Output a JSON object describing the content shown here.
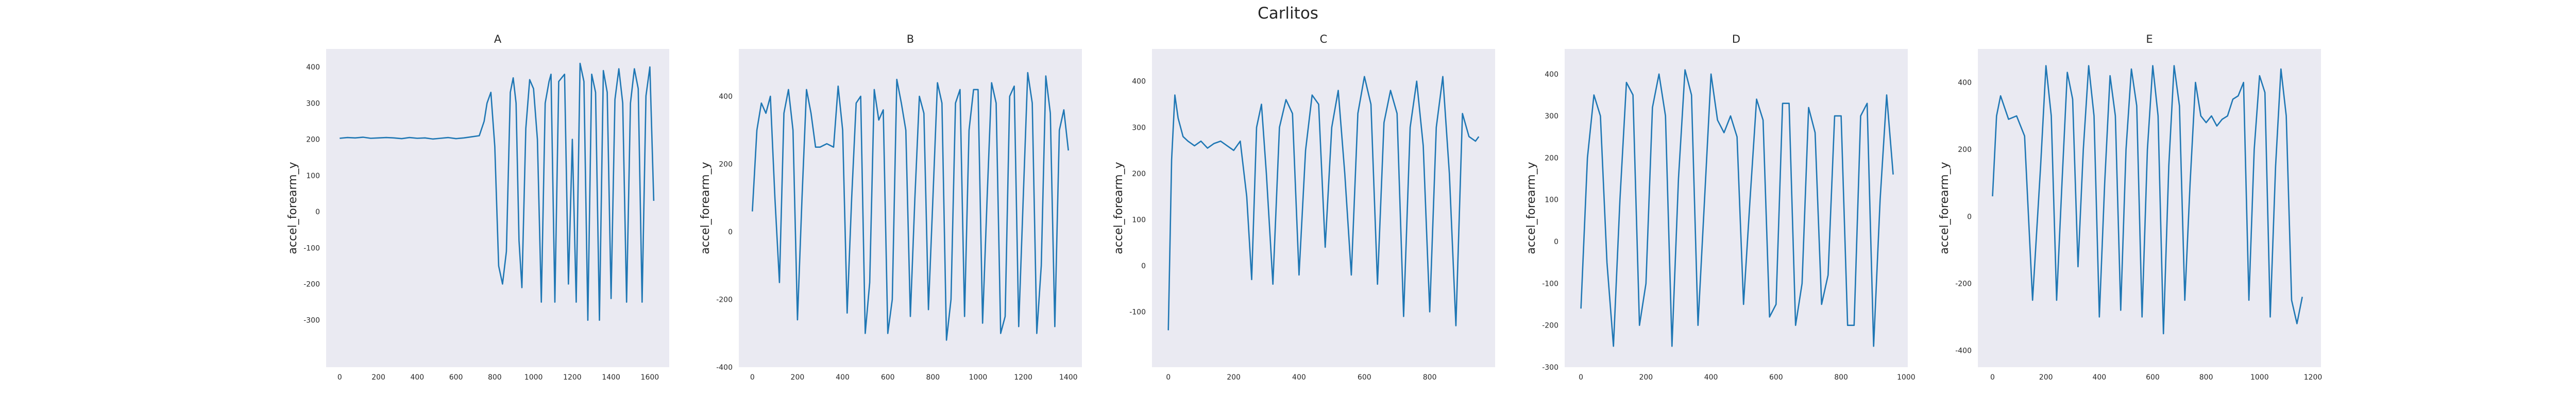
{
  "figure": {
    "suptitle": "Carlitos",
    "background": "#ffffff",
    "axes_background": "#eaeaf2",
    "line_color": "#1f77b4"
  },
  "chart_data": [
    {
      "type": "line",
      "title": "A",
      "xlabel": "",
      "ylabel": "accel_forearm_y",
      "xlim": [
        -70,
        1700
      ],
      "ylim": [
        -430,
        450
      ],
      "xticks": [
        0,
        200,
        400,
        600,
        800,
        1000,
        1200,
        1400,
        1600
      ],
      "yticks": [
        -300,
        -200,
        -100,
        0,
        100,
        200,
        300,
        400
      ],
      "grid": false,
      "series": [
        {
          "x": [
            0,
            40,
            80,
            120,
            160,
            200,
            240,
            280,
            320,
            360,
            400,
            440,
            480,
            520,
            560,
            600,
            640,
            680,
            720,
            745,
            760,
            780,
            800,
            820,
            840,
            860,
            880,
            895,
            910,
            925,
            940,
            960,
            980,
            1000,
            1020,
            1040,
            1060,
            1080,
            1090,
            1110,
            1130,
            1160,
            1180,
            1200,
            1220,
            1240,
            1260,
            1280,
            1300,
            1320,
            1340,
            1360,
            1380,
            1400,
            1420,
            1440,
            1460,
            1480,
            1500,
            1520,
            1540,
            1560,
            1580,
            1600,
            1620
          ],
          "y": [
            203,
            205,
            204,
            206,
            203,
            204,
            205,
            204,
            202,
            205,
            203,
            204,
            201,
            203,
            205,
            202,
            204,
            207,
            210,
            250,
            300,
            330,
            180,
            -150,
            -200,
            -110,
            330,
            370,
            300,
            -80,
            -210,
            230,
            365,
            340,
            200,
            -250,
            300,
            360,
            380,
            -250,
            360,
            380,
            -200,
            200,
            -250,
            410,
            360,
            -300,
            380,
            330,
            -300,
            390,
            330,
            -240,
            310,
            395,
            300,
            -250,
            300,
            395,
            340,
            -250,
            320,
            400,
            30
          ]
        }
      ]
    },
    {
      "type": "line",
      "title": "B",
      "xlabel": "",
      "ylabel": "accel_forearm_y",
      "xlim": [
        -60,
        1460
      ],
      "ylim": [
        -400,
        540
      ],
      "xticks": [
        0,
        200,
        400,
        600,
        800,
        1000,
        1200,
        1400
      ],
      "yticks": [
        -400,
        -200,
        0,
        200,
        400
      ],
      "grid": false,
      "series": [
        {
          "x": [
            0,
            20,
            40,
            60,
            80,
            100,
            120,
            140,
            160,
            180,
            200,
            220,
            240,
            260,
            280,
            300,
            330,
            360,
            380,
            400,
            420,
            440,
            460,
            480,
            500,
            520,
            540,
            560,
            580,
            600,
            620,
            640,
            660,
            680,
            700,
            720,
            740,
            760,
            780,
            800,
            820,
            840,
            860,
            880,
            900,
            920,
            940,
            960,
            980,
            1000,
            1020,
            1040,
            1060,
            1080,
            1100,
            1120,
            1140,
            1160,
            1180,
            1200,
            1220,
            1240,
            1260,
            1280,
            1300,
            1320,
            1340,
            1360,
            1380,
            1400
          ],
          "y": [
            60,
            300,
            380,
            350,
            400,
            100,
            -150,
            350,
            420,
            300,
            -260,
            100,
            420,
            350,
            250,
            250,
            260,
            250,
            430,
            300,
            -240,
            100,
            380,
            400,
            -300,
            -150,
            420,
            330,
            360,
            -300,
            -200,
            450,
            380,
            300,
            -250,
            100,
            400,
            350,
            -230,
            100,
            440,
            380,
            -320,
            -200,
            380,
            420,
            -250,
            300,
            420,
            420,
            -270,
            100,
            440,
            380,
            -300,
            -250,
            400,
            430,
            -280,
            100,
            470,
            380,
            -300,
            -100,
            460,
            350,
            -280,
            300,
            360,
            240
          ]
        }
      ]
    },
    {
      "type": "line",
      "title": "C",
      "xlabel": "",
      "ylabel": "accel_forearm_y",
      "xlim": [
        -50,
        1000
      ],
      "ylim": [
        -220,
        470
      ],
      "xticks": [
        0,
        200,
        400,
        600,
        800
      ],
      "yticks": [
        -100,
        0,
        100,
        200,
        300,
        400
      ],
      "grid": false,
      "series": [
        {
          "x": [
            0,
            10,
            20,
            30,
            45,
            60,
            80,
            100,
            120,
            140,
            160,
            180,
            200,
            220,
            240,
            255,
            270,
            285,
            300,
            320,
            340,
            360,
            380,
            400,
            420,
            440,
            460,
            480,
            500,
            520,
            540,
            560,
            580,
            600,
            620,
            640,
            660,
            680,
            700,
            720,
            740,
            760,
            780,
            800,
            820,
            840,
            860,
            880,
            900,
            920,
            940,
            950
          ],
          "y": [
            -140,
            230,
            370,
            320,
            280,
            270,
            260,
            270,
            255,
            265,
            270,
            260,
            250,
            270,
            150,
            -30,
            300,
            350,
            200,
            -40,
            300,
            360,
            330,
            -20,
            250,
            370,
            350,
            40,
            300,
            380,
            200,
            -20,
            330,
            410,
            350,
            -40,
            310,
            380,
            330,
            -110,
            300,
            400,
            260,
            -100,
            300,
            410,
            200,
            -130,
            330,
            280,
            270,
            280
          ]
        }
      ]
    },
    {
      "type": "line",
      "title": "D",
      "xlabel": "",
      "ylabel": "accel_forearm_y",
      "xlim": [
        -50,
        1005
      ],
      "ylim": [
        -300,
        460
      ],
      "xticks": [
        0,
        200,
        400,
        600,
        800,
        1000
      ],
      "yticks": [
        -300,
        -200,
        -100,
        0,
        100,
        200,
        300,
        400
      ],
      "grid": false,
      "series": [
        {
          "x": [
            0,
            20,
            40,
            60,
            80,
            100,
            120,
            140,
            160,
            180,
            200,
            220,
            240,
            260,
            280,
            300,
            320,
            340,
            360,
            380,
            400,
            420,
            440,
            460,
            480,
            500,
            520,
            540,
            560,
            580,
            600,
            620,
            640,
            660,
            680,
            700,
            720,
            740,
            760,
            780,
            800,
            820,
            840,
            860,
            880,
            900,
            920,
            940,
            960
          ],
          "y": [
            -160,
            200,
            350,
            300,
            -50,
            -250,
            100,
            380,
            350,
            -200,
            -100,
            320,
            400,
            300,
            -250,
            150,
            410,
            350,
            -200,
            100,
            400,
            290,
            260,
            300,
            250,
            -150,
            100,
            340,
            290,
            -180,
            -150,
            330,
            330,
            -200,
            -100,
            320,
            260,
            -150,
            -80,
            300,
            300,
            -200,
            -200,
            300,
            330,
            -250,
            100,
            350,
            160
          ]
        }
      ]
    },
    {
      "type": "line",
      "title": "E",
      "xlabel": "",
      "ylabel": "accel_forearm_y",
      "xlim": [
        -55,
        1230
      ],
      "ylim": [
        -450,
        500
      ],
      "xticks": [
        0,
        200,
        400,
        600,
        800,
        1000,
        1200
      ],
      "yticks": [
        -400,
        -200,
        0,
        200,
        400
      ],
      "grid": false,
      "series": [
        {
          "x": [
            0,
            15,
            30,
            60,
            90,
            120,
            150,
            180,
            200,
            220,
            240,
            260,
            280,
            300,
            320,
            340,
            360,
            380,
            400,
            420,
            440,
            460,
            480,
            500,
            520,
            540,
            560,
            580,
            600,
            620,
            640,
            660,
            680,
            700,
            720,
            740,
            760,
            780,
            800,
            820,
            840,
            860,
            880,
            900,
            920,
            940,
            960,
            980,
            1000,
            1020,
            1040,
            1060,
            1080,
            1100,
            1120,
            1140,
            1160
          ],
          "y": [
            60,
            300,
            360,
            290,
            300,
            240,
            -250,
            150,
            450,
            300,
            -250,
            100,
            430,
            350,
            -150,
            200,
            450,
            300,
            -300,
            100,
            420,
            300,
            -280,
            200,
            440,
            330,
            -300,
            200,
            450,
            300,
            -350,
            150,
            450,
            330,
            -250,
            100,
            400,
            300,
            280,
            300,
            270,
            290,
            300,
            350,
            360,
            400,
            -250,
            200,
            420,
            370,
            -300,
            150,
            440,
            300,
            -250,
            -320,
            -240
          ]
        }
      ]
    }
  ]
}
